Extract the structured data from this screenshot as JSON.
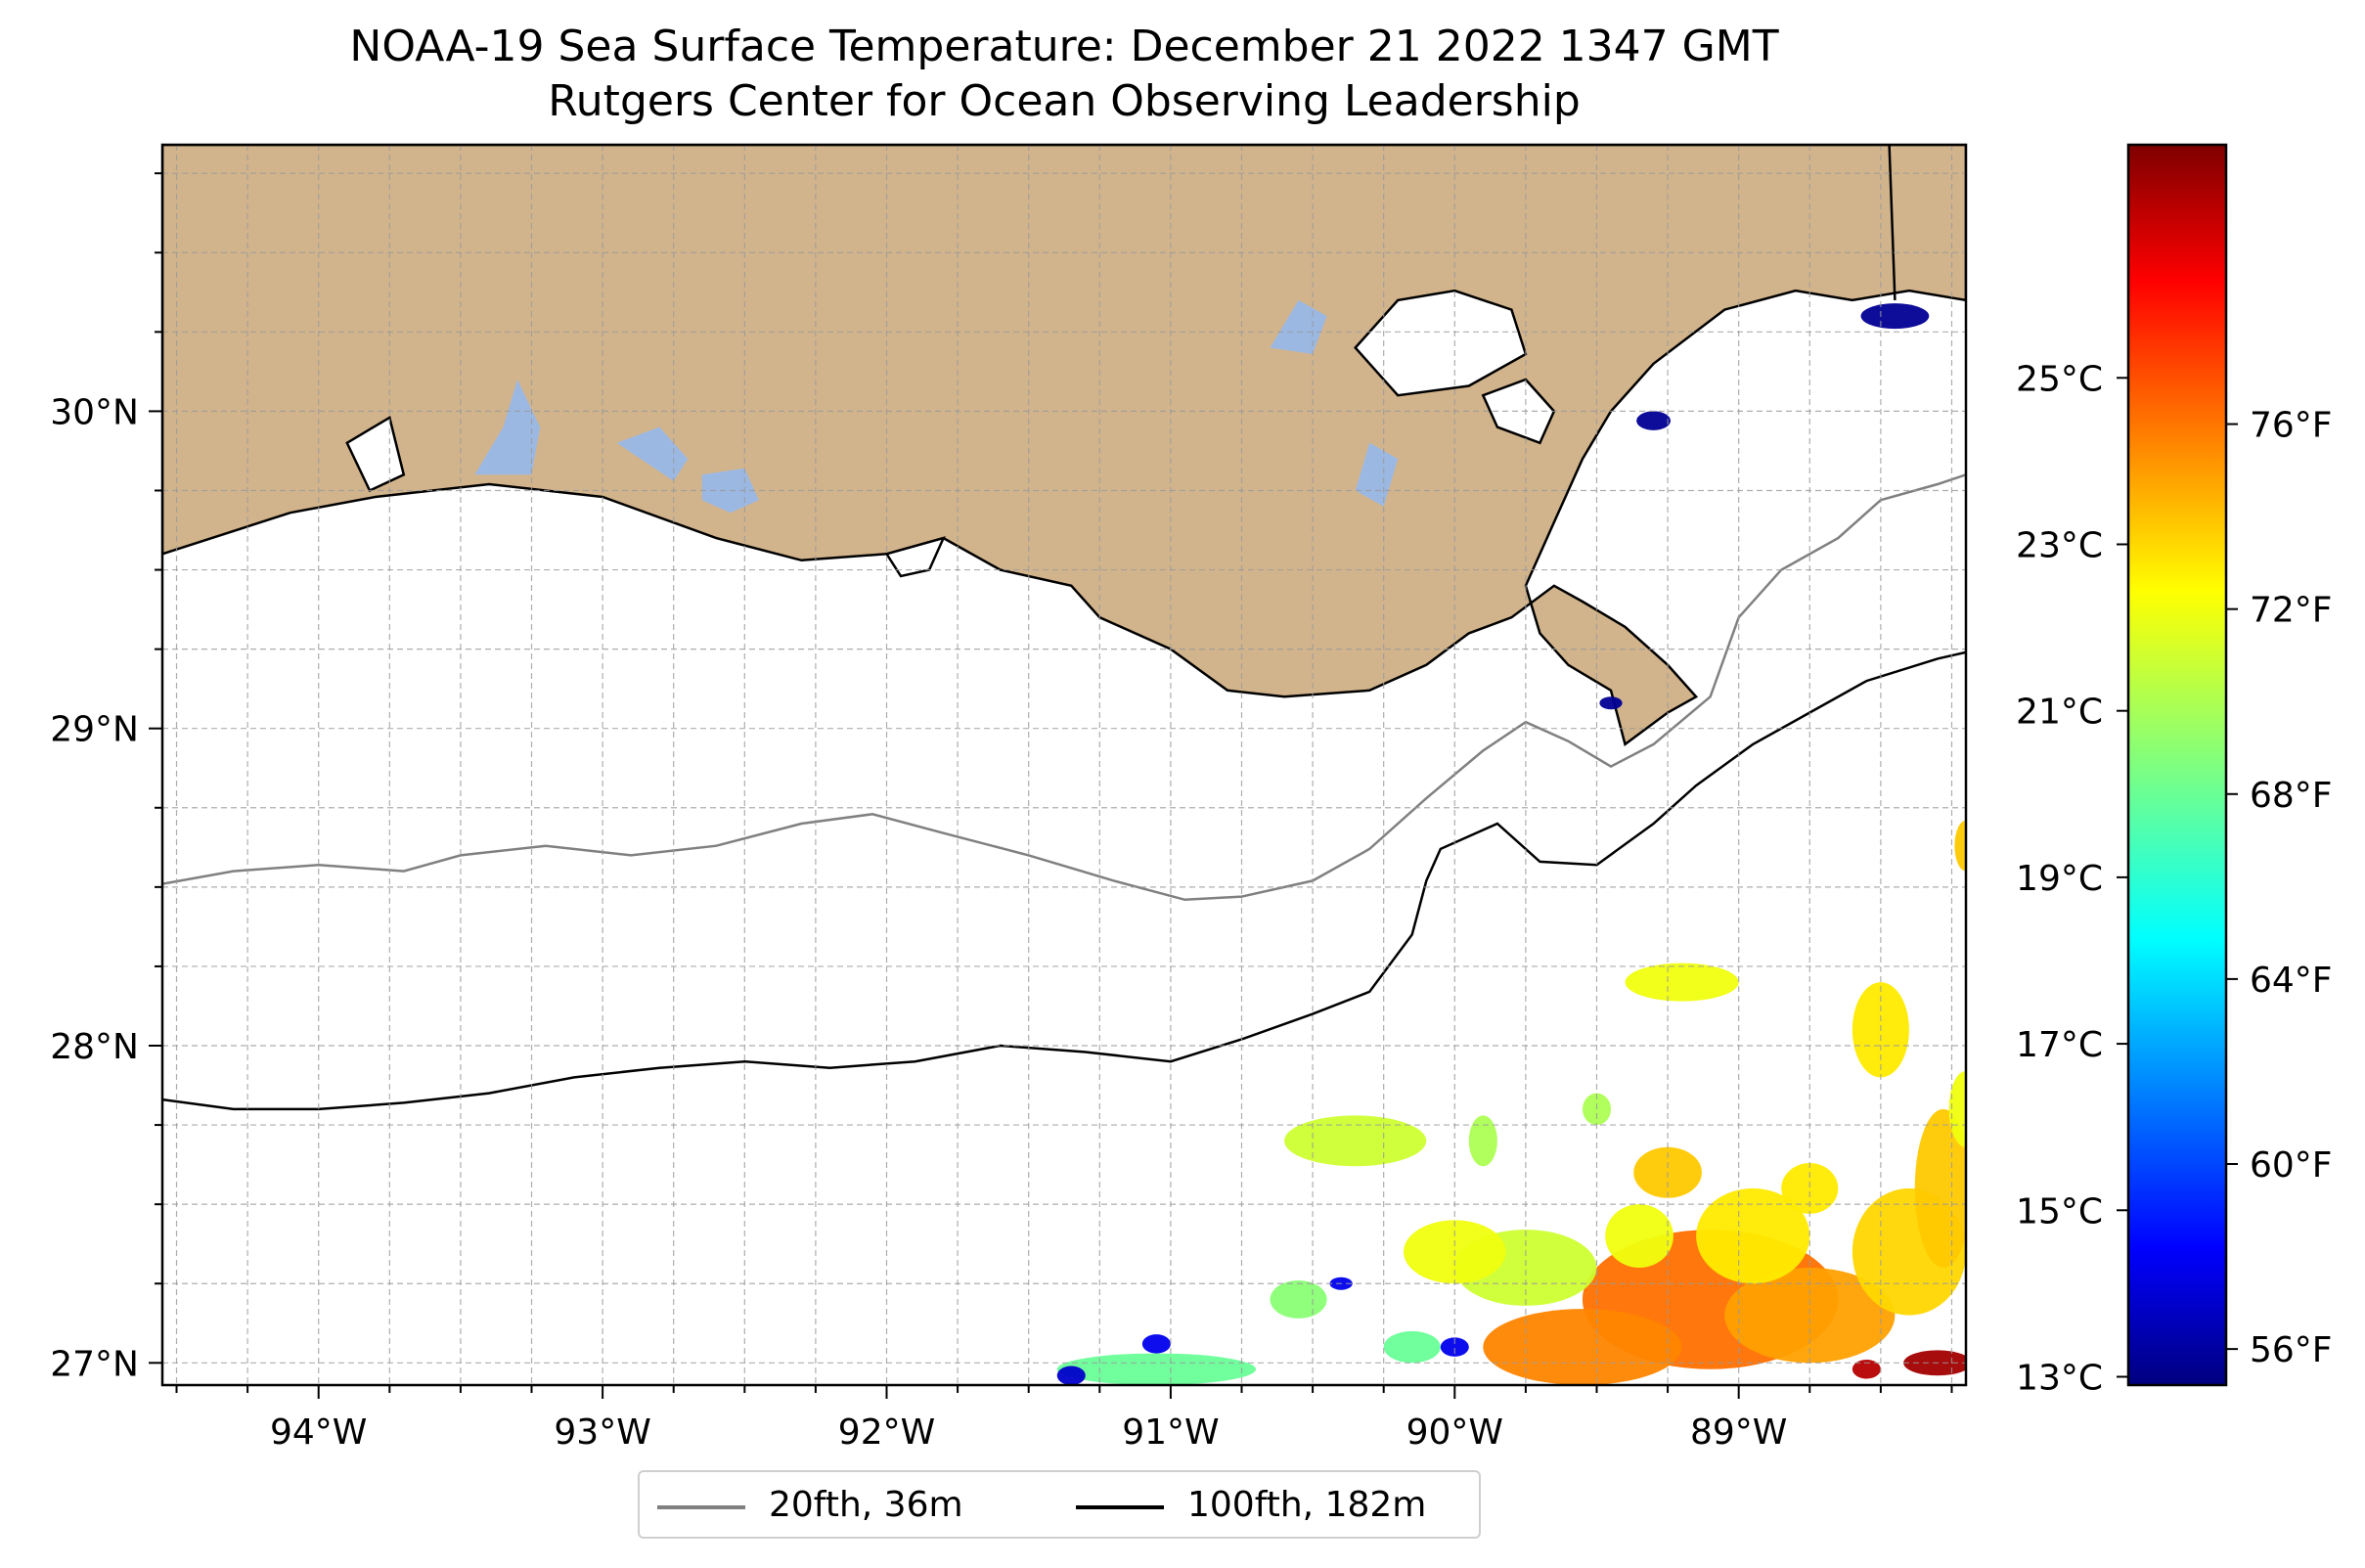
{
  "header": {
    "title_line1": "NOAA-19 Sea Surface Temperature: December 21 2022 1347 GMT",
    "title_line2": "Rutgers Center for Ocean Observing Leadership"
  },
  "map": {
    "lon_range": [
      -94.55,
      -88.2
    ],
    "lat_range": [
      26.93,
      30.84
    ],
    "lon_ticks": [
      -94,
      -93,
      -92,
      -91,
      -90,
      -89
    ],
    "lon_tick_labels": [
      "94°W",
      "93°W",
      "92°W",
      "91°W",
      "90°W",
      "89°W"
    ],
    "lat_ticks": [
      27,
      28,
      29,
      30
    ],
    "lat_tick_labels": [
      "27°N",
      "28°N",
      "29°N",
      "30°N"
    ],
    "grid": true,
    "land_color": "#d2b48c",
    "lake_color": "#9bb8e3",
    "ocean_color": "#ffffff"
  },
  "colorbar": {
    "colormap": "jet",
    "range_c": [
      12.9,
      27.8
    ],
    "celsius_ticks": [
      13,
      15,
      17,
      19,
      21,
      23,
      25
    ],
    "celsius_labels": [
      "13°C",
      "15°C",
      "17°C",
      "19°C",
      "21°C",
      "23°C",
      "25°C"
    ],
    "fahrenheit_ticks": [
      56,
      60,
      64,
      68,
      72,
      76
    ],
    "fahrenheit_labels": [
      "56°F",
      "60°F",
      "64°F",
      "68°F",
      "72°F",
      "76°F"
    ]
  },
  "legend": {
    "items": [
      {
        "label": "20fth, 36m",
        "color": "#808080"
      },
      {
        "label": "100fth, 182m",
        "color": "#000000"
      }
    ]
  },
  "sst_patches": [
    {
      "lon": -89.1,
      "lat": 27.2,
      "rx": 0.45,
      "ry": 0.22,
      "temp_c": 24.3
    },
    {
      "lon": -89.55,
      "lat": 27.05,
      "rx": 0.35,
      "ry": 0.12,
      "temp_c": 24.0
    },
    {
      "lon": -88.75,
      "lat": 27.15,
      "rx": 0.3,
      "ry": 0.15,
      "temp_c": 23.6
    },
    {
      "lon": -88.95,
      "lat": 27.4,
      "rx": 0.2,
      "ry": 0.15,
      "temp_c": 22.5
    },
    {
      "lon": -88.4,
      "lat": 27.35,
      "rx": 0.2,
      "ry": 0.2,
      "temp_c": 22.8
    },
    {
      "lon": -88.28,
      "lat": 27.55,
      "rx": 0.1,
      "ry": 0.25,
      "temp_c": 23.0
    },
    {
      "lon": -89.35,
      "lat": 27.4,
      "rx": 0.12,
      "ry": 0.1,
      "temp_c": 22.0
    },
    {
      "lon": -89.75,
      "lat": 27.3,
      "rx": 0.25,
      "ry": 0.12,
      "temp_c": 21.5
    },
    {
      "lon": -90.0,
      "lat": 27.35,
      "rx": 0.18,
      "ry": 0.1,
      "temp_c": 22.0
    },
    {
      "lon": -88.5,
      "lat": 28.05,
      "rx": 0.1,
      "ry": 0.15,
      "temp_c": 22.5
    },
    {
      "lon": -88.2,
      "lat": 27.8,
      "rx": 0.06,
      "ry": 0.12,
      "temp_c": 22.0
    },
    {
      "lon": -89.2,
      "lat": 28.2,
      "rx": 0.2,
      "ry": 0.06,
      "temp_c": 22.0
    },
    {
      "lon": -90.35,
      "lat": 27.7,
      "rx": 0.25,
      "ry": 0.08,
      "temp_c": 21.5
    },
    {
      "lon": -89.9,
      "lat": 27.7,
      "rx": 0.05,
      "ry": 0.08,
      "temp_c": 21.0
    },
    {
      "lon": -89.5,
      "lat": 27.8,
      "rx": 0.05,
      "ry": 0.05,
      "temp_c": 21.0
    },
    {
      "lon": -88.2,
      "lat": 28.63,
      "rx": 0.04,
      "ry": 0.08,
      "temp_c": 23.0
    },
    {
      "lon": -91.05,
      "lat": 26.98,
      "rx": 0.35,
      "ry": 0.05,
      "temp_c": 20.0
    },
    {
      "lon": -90.55,
      "lat": 27.2,
      "rx": 0.1,
      "ry": 0.06,
      "temp_c": 20.5
    },
    {
      "lon": -90.15,
      "lat": 27.05,
      "rx": 0.1,
      "ry": 0.05,
      "temp_c": 20.0
    },
    {
      "lon": -89.25,
      "lat": 27.6,
      "rx": 0.12,
      "ry": 0.08,
      "temp_c": 23.0
    },
    {
      "lon": -88.75,
      "lat": 27.55,
      "rx": 0.1,
      "ry": 0.08,
      "temp_c": 22.5
    }
  ],
  "cold_patches": [
    {
      "lon": -91.35,
      "lat": 26.96,
      "rx": 0.05,
      "ry": 0.03,
      "temp_c": 14.0
    },
    {
      "lon": -91.05,
      "lat": 27.06,
      "rx": 0.05,
      "ry": 0.03,
      "temp_c": 14.5
    },
    {
      "lon": -90.0,
      "lat": 27.05,
      "rx": 0.05,
      "ry": 0.03,
      "temp_c": 14.5
    },
    {
      "lon": -90.4,
      "lat": 27.25,
      "rx": 0.04,
      "ry": 0.02,
      "temp_c": 14.5
    },
    {
      "lon": -88.45,
      "lat": 30.3,
      "rx": 0.12,
      "ry": 0.04,
      "temp_c": 13.2
    },
    {
      "lon": -89.3,
      "lat": 29.97,
      "rx": 0.06,
      "ry": 0.03,
      "temp_c": 13.2
    },
    {
      "lon": -89.45,
      "lat": 29.08,
      "rx": 0.04,
      "ry": 0.02,
      "temp_c": 13.2
    }
  ],
  "hot_patches": [
    {
      "lon": -88.3,
      "lat": 27.0,
      "rx": 0.12,
      "ry": 0.04,
      "temp_c": 27.3
    },
    {
      "lon": -88.55,
      "lat": 26.98,
      "rx": 0.05,
      "ry": 0.03,
      "temp_c": 27.0
    }
  ],
  "land_polygons": [
    [
      [
        -94.55,
        29.55
      ],
      [
        -94.1,
        29.68
      ],
      [
        -93.8,
        29.73
      ],
      [
        -93.4,
        29.77
      ],
      [
        -93.0,
        29.73
      ],
      [
        -92.6,
        29.6
      ],
      [
        -92.3,
        29.53
      ],
      [
        -92.0,
        29.55
      ],
      [
        -91.8,
        29.6
      ],
      [
        -91.6,
        29.5
      ],
      [
        -91.35,
        29.45
      ],
      [
        -91.25,
        29.35
      ],
      [
        -91.0,
        29.25
      ],
      [
        -90.8,
        29.12
      ],
      [
        -90.6,
        29.1
      ],
      [
        -90.3,
        29.12
      ],
      [
        -90.1,
        29.2
      ],
      [
        -89.95,
        29.3
      ],
      [
        -89.8,
        29.35
      ],
      [
        -89.65,
        29.45
      ],
      [
        -89.55,
        29.4
      ],
      [
        -89.4,
        29.32
      ],
      [
        -89.25,
        29.2
      ],
      [
        -89.15,
        29.1
      ],
      [
        -89.25,
        29.05
      ],
      [
        -89.4,
        28.95
      ],
      [
        -89.45,
        29.12
      ],
      [
        -89.6,
        29.2
      ],
      [
        -89.7,
        29.3
      ],
      [
        -89.75,
        29.45
      ],
      [
        -89.65,
        29.65
      ],
      [
        -89.55,
        29.85
      ],
      [
        -89.45,
        30.0
      ],
      [
        -89.3,
        30.15
      ],
      [
        -89.05,
        30.32
      ],
      [
        -88.8,
        30.38
      ],
      [
        -88.6,
        30.35
      ],
      [
        -88.4,
        30.38
      ],
      [
        -88.2,
        30.35
      ],
      [
        -88.2,
        30.84
      ],
      [
        -94.55,
        30.84
      ]
    ]
  ],
  "lake_polygons": [
    [
      [
        -93.45,
        29.8
      ],
      [
        -93.35,
        29.95
      ],
      [
        -93.3,
        30.1
      ],
      [
        -93.22,
        29.95
      ],
      [
        -93.25,
        29.8
      ]
    ],
    [
      [
        -92.95,
        29.9
      ],
      [
        -92.8,
        29.95
      ],
      [
        -92.7,
        29.85
      ],
      [
        -92.75,
        29.78
      ]
    ],
    [
      [
        -92.65,
        29.8
      ],
      [
        -92.5,
        29.82
      ],
      [
        -92.45,
        29.72
      ],
      [
        -92.55,
        29.68
      ],
      [
        -92.65,
        29.72
      ]
    ],
    [
      [
        -90.65,
        30.2
      ],
      [
        -90.55,
        30.35
      ],
      [
        -90.45,
        30.3
      ],
      [
        -90.5,
        30.18
      ]
    ],
    [
      [
        -90.35,
        29.75
      ],
      [
        -90.3,
        29.9
      ],
      [
        -90.2,
        29.85
      ],
      [
        -90.25,
        29.7
      ]
    ]
  ],
  "water_in_land": [
    [
      [
        -90.35,
        30.2
      ],
      [
        -90.2,
        30.35
      ],
      [
        -90.0,
        30.38
      ],
      [
        -89.8,
        30.32
      ],
      [
        -89.75,
        30.18
      ],
      [
        -89.95,
        30.08
      ],
      [
        -90.2,
        30.05
      ]
    ],
    [
      [
        -89.9,
        30.05
      ],
      [
        -89.75,
        30.1
      ],
      [
        -89.65,
        30.0
      ],
      [
        -89.7,
        29.9
      ],
      [
        -89.85,
        29.95
      ]
    ],
    [
      [
        -92.0,
        29.55
      ],
      [
        -91.8,
        29.6
      ],
      [
        -91.85,
        29.5
      ],
      [
        -91.95,
        29.48
      ]
    ],
    [
      [
        -93.9,
        29.9
      ],
      [
        -93.75,
        29.98
      ],
      [
        -93.7,
        29.8
      ],
      [
        -93.82,
        29.75
      ]
    ]
  ],
  "contour_20fth": [
    [
      -94.55,
      28.51
    ],
    [
      -94.3,
      28.55
    ],
    [
      -94.0,
      28.57
    ],
    [
      -93.7,
      28.55
    ],
    [
      -93.5,
      28.6
    ],
    [
      -93.2,
      28.63
    ],
    [
      -92.9,
      28.6
    ],
    [
      -92.6,
      28.63
    ],
    [
      -92.3,
      28.7
    ],
    [
      -92.05,
      28.73
    ],
    [
      -91.8,
      28.67
    ],
    [
      -91.5,
      28.6
    ],
    [
      -91.2,
      28.52
    ],
    [
      -90.95,
      28.46
    ],
    [
      -90.75,
      28.47
    ],
    [
      -90.5,
      28.52
    ],
    [
      -90.3,
      28.62
    ],
    [
      -90.1,
      28.78
    ],
    [
      -89.9,
      28.93
    ],
    [
      -89.75,
      29.02
    ],
    [
      -89.6,
      28.96
    ],
    [
      -89.45,
      28.88
    ],
    [
      -89.3,
      28.95
    ],
    [
      -89.1,
      29.1
    ],
    [
      -89.0,
      29.35
    ],
    [
      -88.85,
      29.5
    ],
    [
      -88.65,
      29.6
    ],
    [
      -88.5,
      29.72
    ],
    [
      -88.3,
      29.77
    ],
    [
      -88.2,
      29.8
    ]
  ],
  "contour_100fth": [
    [
      -94.55,
      27.83
    ],
    [
      -94.3,
      27.8
    ],
    [
      -94.0,
      27.8
    ],
    [
      -93.7,
      27.82
    ],
    [
      -93.4,
      27.85
    ],
    [
      -93.1,
      27.9
    ],
    [
      -92.8,
      27.93
    ],
    [
      -92.5,
      27.95
    ],
    [
      -92.2,
      27.93
    ],
    [
      -91.9,
      27.95
    ],
    [
      -91.6,
      28.0
    ],
    [
      -91.3,
      27.98
    ],
    [
      -91.0,
      27.95
    ],
    [
      -90.75,
      28.02
    ],
    [
      -90.5,
      28.1
    ],
    [
      -90.3,
      28.17
    ],
    [
      -90.15,
      28.35
    ],
    [
      -90.1,
      28.52
    ],
    [
      -90.05,
      28.62
    ],
    [
      -89.85,
      28.7
    ],
    [
      -89.7,
      28.58
    ],
    [
      -89.5,
      28.57
    ],
    [
      -89.3,
      28.7
    ],
    [
      -89.15,
      28.82
    ],
    [
      -88.95,
      28.95
    ],
    [
      -88.75,
      29.05
    ],
    [
      -88.55,
      29.15
    ],
    [
      -88.3,
      29.22
    ],
    [
      -88.2,
      29.24
    ]
  ],
  "state_border": [
    [
      -88.47,
      30.84
    ],
    [
      -88.45,
      30.35
    ]
  ]
}
